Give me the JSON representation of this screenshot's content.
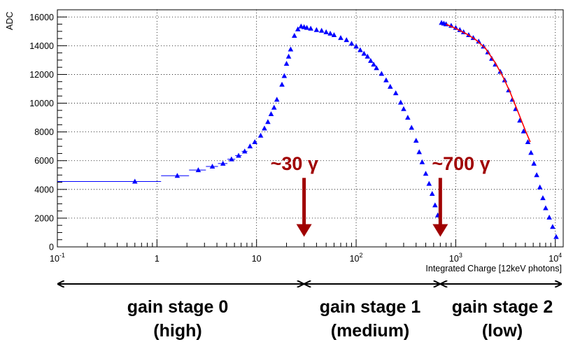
{
  "chart_data": {
    "type": "scatter",
    "title": "",
    "xlabel": "Integrated Charge [12keV photons]",
    "ylabel": "ADC",
    "xscale": "log",
    "xlim": [
      0.1,
      12000
    ],
    "ylim": [
      0,
      16500
    ],
    "grid": true,
    "x_ticks": [
      {
        "value": 0.1,
        "base": "10",
        "exp": "-1"
      },
      {
        "value": 1,
        "base": "1",
        "exp": ""
      },
      {
        "value": 10,
        "base": "10",
        "exp": ""
      },
      {
        "value": 100,
        "base": "10",
        "exp": "2"
      },
      {
        "value": 1000,
        "base": "10",
        "exp": "3"
      },
      {
        "value": 10000,
        "base": "10",
        "exp": "4"
      }
    ],
    "y_ticks": [
      0,
      2000,
      4000,
      6000,
      8000,
      10000,
      12000,
      14000,
      16000
    ],
    "series": [
      {
        "color": "#0000ff",
        "marker": "triangle",
        "points": [
          [
            0.6,
            4550
          ],
          [
            1.6,
            4950
          ],
          [
            2.6,
            5350
          ],
          [
            3.6,
            5600
          ],
          [
            4.6,
            5800
          ],
          [
            5.6,
            6100
          ],
          [
            6.6,
            6350
          ],
          [
            7.6,
            6650
          ],
          [
            8.6,
            7000
          ],
          [
            9.6,
            7300
          ],
          [
            11,
            7750
          ],
          [
            12,
            8250
          ],
          [
            13,
            8700
          ],
          [
            14,
            9250
          ],
          [
            15,
            9700
          ],
          [
            16,
            10250
          ],
          [
            18,
            11300
          ],
          [
            19,
            11900
          ],
          [
            20,
            12750
          ],
          [
            21,
            13250
          ],
          [
            22,
            13750
          ],
          [
            24,
            14700
          ],
          [
            26,
            15150
          ],
          [
            28,
            15350
          ],
          [
            30,
            15300
          ],
          [
            32,
            15250
          ],
          [
            35,
            15200
          ],
          [
            40,
            15100
          ],
          [
            45,
            15050
          ],
          [
            50,
            14950
          ],
          [
            55,
            14850
          ],
          [
            60,
            14750
          ],
          [
            70,
            14550
          ],
          [
            80,
            14400
          ],
          [
            90,
            14150
          ],
          [
            100,
            13950
          ],
          [
            110,
            13700
          ],
          [
            120,
            13450
          ],
          [
            130,
            13250
          ],
          [
            140,
            12950
          ],
          [
            150,
            12700
          ],
          [
            160,
            12450
          ],
          [
            180,
            12050
          ],
          [
            200,
            11600
          ],
          [
            220,
            11150
          ],
          [
            250,
            10700
          ],
          [
            280,
            10050
          ],
          [
            300,
            9600
          ],
          [
            330,
            9000
          ],
          [
            360,
            8300
          ],
          [
            400,
            7400
          ],
          [
            430,
            6600
          ],
          [
            460,
            5900
          ],
          [
            500,
            5100
          ],
          [
            540,
            4400
          ],
          [
            580,
            3700
          ],
          [
            620,
            2900
          ],
          [
            660,
            2200
          ],
          [
            700,
            1500
          ],
          [
            720,
            15600
          ],
          [
            760,
            15550
          ],
          [
            800,
            15500
          ],
          [
            900,
            15400
          ],
          [
            1000,
            15250
          ],
          [
            1100,
            15100
          ],
          [
            1200,
            14950
          ],
          [
            1350,
            14750
          ],
          [
            1500,
            14550
          ],
          [
            1700,
            14300
          ],
          [
            1900,
            13950
          ],
          [
            2100,
            13550
          ],
          [
            2300,
            13100
          ],
          [
            2500,
            12700
          ],
          [
            2800,
            12200
          ],
          [
            3100,
            11600
          ],
          [
            3400,
            10900
          ],
          [
            3700,
            10250
          ],
          [
            4000,
            9600
          ],
          [
            4400,
            8800
          ],
          [
            4800,
            8050
          ],
          [
            5300,
            7300
          ],
          [
            5700,
            6550
          ],
          [
            6100,
            5800
          ],
          [
            6500,
            5000
          ],
          [
            7000,
            4150
          ],
          [
            7500,
            3400
          ],
          [
            8000,
            2700
          ],
          [
            8700,
            2050
          ],
          [
            9400,
            1400
          ],
          [
            10200,
            700
          ]
        ]
      },
      {
        "color": "#ff0000",
        "marker": "line",
        "points": [
          [
            800,
            15500
          ],
          [
            1000,
            15200
          ],
          [
            1300,
            14800
          ],
          [
            1600,
            14400
          ],
          [
            2000,
            13800
          ],
          [
            2500,
            12800
          ],
          [
            3000,
            11800
          ],
          [
            3500,
            10800
          ],
          [
            4000,
            9800
          ],
          [
            4500,
            8900
          ],
          [
            5000,
            8100
          ],
          [
            5600,
            7300
          ]
        ]
      }
    ],
    "step_segments": [
      {
        "x0": 0.1,
        "x1": 1.1,
        "y": 4550
      },
      {
        "x0": 1.1,
        "x1": 2.1,
        "y": 4950
      },
      {
        "x0": 2.1,
        "x1": 3.1,
        "y": 5350
      },
      {
        "x0": 3.1,
        "x1": 4.1,
        "y": 5600
      },
      {
        "x0": 4.1,
        "x1": 5.1,
        "y": 5800
      },
      {
        "x0": 5.1,
        "x1": 6.1,
        "y": 6100
      },
      {
        "x0": 6.1,
        "x1": 7.1,
        "y": 6350
      },
      {
        "x0": 7.1,
        "x1": 8.1,
        "y": 6650
      }
    ],
    "annotations": [
      {
        "text": "~30 γ",
        "x": 30,
        "y_from": 4800,
        "y_to": 900
      },
      {
        "text": "~700 γ",
        "x": 700,
        "y_from": 4800,
        "y_to": 900
      }
    ],
    "stages": [
      {
        "line1": "gain stage 0",
        "line2": "(high)",
        "from": 0.1,
        "to": 30
      },
      {
        "line1": "gain stage 1",
        "line2": "(medium)",
        "from": 30,
        "to": 700
      },
      {
        "line1": "gain stage 2",
        "line2": "(low)",
        "from": 700,
        "to": 12000
      }
    ]
  }
}
